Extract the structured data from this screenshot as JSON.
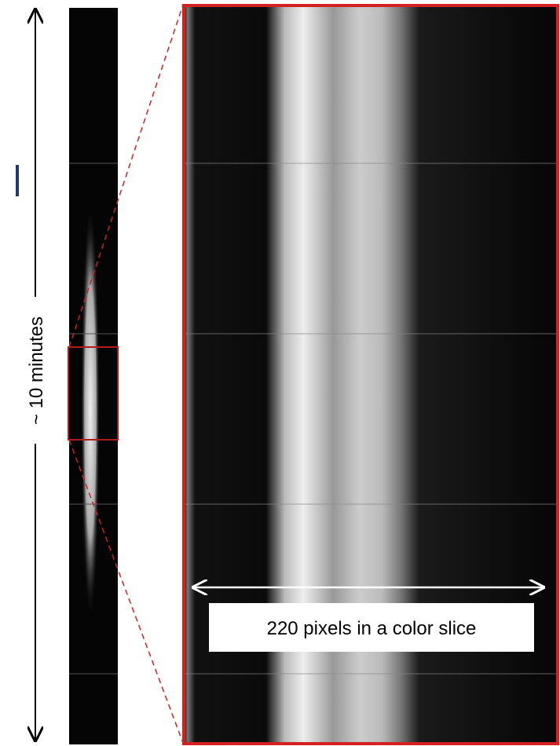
{
  "labels": {
    "duration": "~ 10 minutes",
    "caption": "220 pixels in a color slice"
  }
}
